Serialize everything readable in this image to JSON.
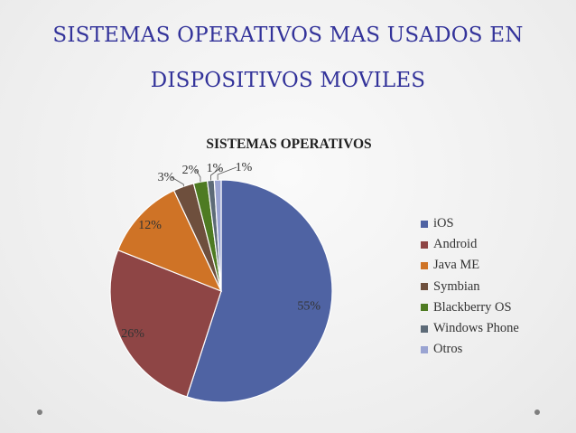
{
  "slide": {
    "title_line1": "SISTEMAS OPERATIVOS MAS USADOS EN",
    "title_line2": "DISPOSITIVOS MOVILES",
    "title_color": "#33339a",
    "background": "#f2f2f2"
  },
  "chart_data": {
    "type": "pie",
    "title": "SISTEMAS OPERATIVOS",
    "categories": [
      "iOS",
      "Android",
      "Java ME",
      "Symbian",
      "Blackberry OS",
      "Windows Phone",
      "Otros"
    ],
    "values": [
      55,
      26,
      12,
      3,
      2,
      1,
      1
    ],
    "labels": [
      "55%",
      "26%",
      "12%",
      "3%",
      "2%",
      "1%",
      "1%"
    ],
    "colors": [
      "#4f63a3",
      "#8e4545",
      "#cf7326",
      "#6e4f3d",
      "#4e7b22",
      "#5d6b78",
      "#9aa4d2"
    ],
    "legend_position": "right"
  }
}
